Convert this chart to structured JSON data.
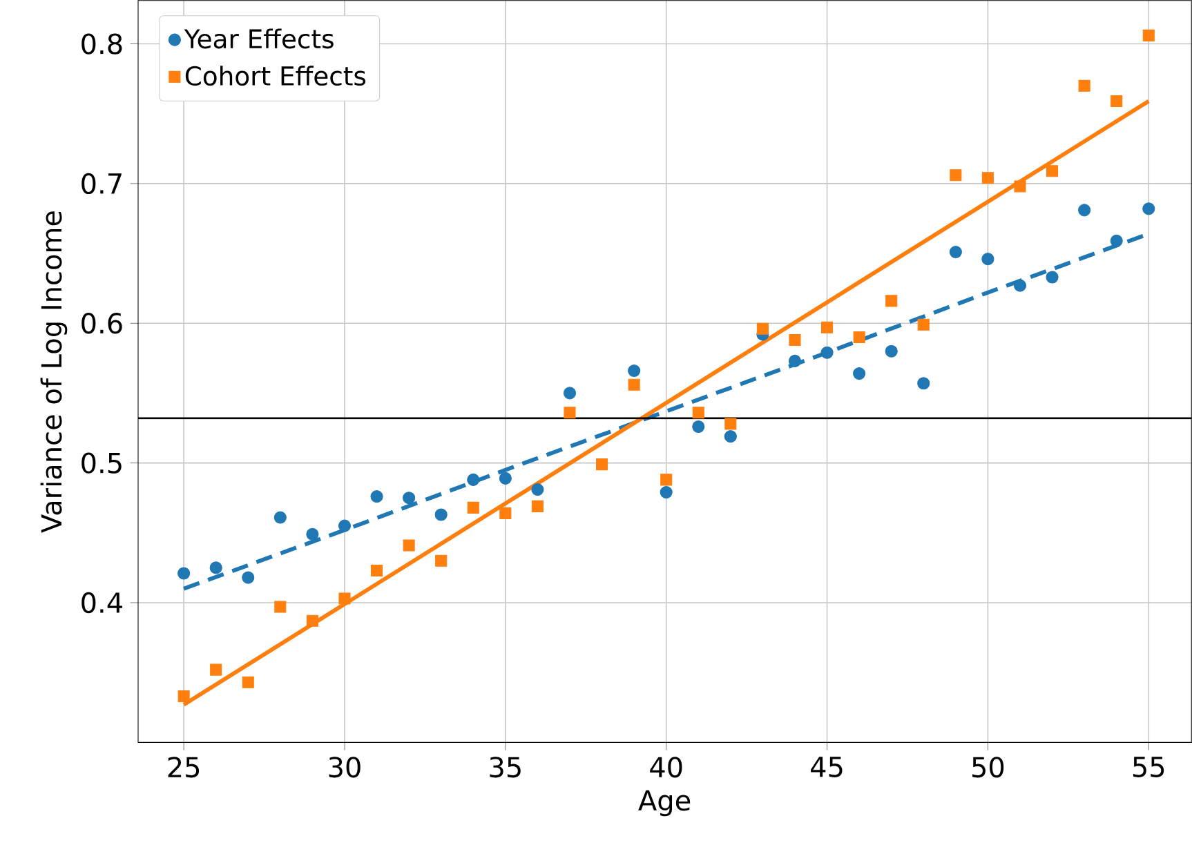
{
  "chart_data": {
    "type": "scatter",
    "xlabel": "Age",
    "ylabel": "Variance of Log Income",
    "x": [
      25,
      26,
      27,
      28,
      29,
      30,
      31,
      32,
      33,
      34,
      35,
      36,
      37,
      38,
      39,
      40,
      41,
      42,
      43,
      44,
      45,
      46,
      47,
      48,
      49,
      50,
      51,
      52,
      53,
      54,
      55
    ],
    "xlim": [
      23.58,
      56.33
    ],
    "ylim": [
      0.3,
      0.831
    ],
    "xticks": [
      25,
      30,
      35,
      40,
      45,
      50,
      55
    ],
    "yticks": [
      0.4,
      0.5,
      0.6,
      0.7,
      0.8
    ],
    "grid": true,
    "legend": "top left",
    "series": [
      {
        "name": "Year Effects",
        "color": "#1f77b4",
        "marker": "circle",
        "values": [
          0.421,
          0.425,
          0.418,
          0.461,
          0.449,
          0.455,
          0.476,
          0.475,
          0.463,
          0.488,
          0.489,
          0.481,
          0.55,
          null,
          0.566,
          0.479,
          0.526,
          0.519,
          0.592,
          0.573,
          0.579,
          0.564,
          0.58,
          0.557,
          0.651,
          0.646,
          0.627,
          0.633,
          0.681,
          0.659,
          0.682
        ]
      },
      {
        "name": "Cohort Effects",
        "color": "#ff7f0e",
        "marker": "square",
        "values": [
          0.333,
          0.352,
          0.343,
          0.397,
          0.387,
          0.403,
          0.423,
          0.441,
          0.43,
          0.468,
          0.464,
          0.469,
          0.536,
          0.499,
          0.556,
          0.488,
          0.536,
          0.528,
          0.596,
          0.588,
          0.597,
          0.59,
          0.616,
          0.599,
          0.706,
          0.704,
          0.698,
          0.709,
          0.77,
          0.759,
          0.806
        ]
      },
      {
        "type": "line",
        "color": "#1f77b4",
        "line_style": "dashed",
        "x": [
          25,
          30,
          35,
          40,
          45,
          50,
          55
        ],
        "values": [
          0.41,
          0.452,
          0.495,
          0.537,
          0.579,
          0.622,
          0.664
        ]
      },
      {
        "type": "line",
        "color": "#ff7f0e",
        "line_style": "solid",
        "x": [
          25,
          30,
          35,
          40,
          45,
          50,
          55
        ],
        "values": [
          0.327,
          0.399,
          0.471,
          0.543,
          0.615,
          0.687,
          0.759
        ]
      }
    ],
    "ref_lines": [
      {
        "axis": "y",
        "value": 0.532,
        "color": "#000000"
      }
    ]
  }
}
